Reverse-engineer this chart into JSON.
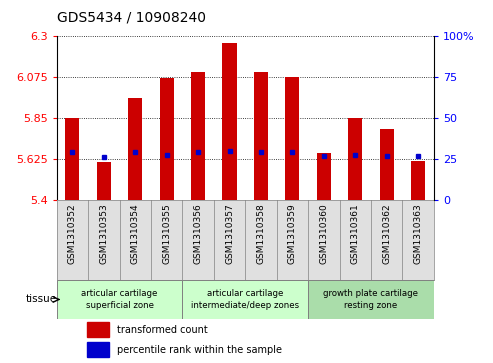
{
  "title": "GDS5434 / 10908240",
  "samples": [
    "GSM1310352",
    "GSM1310353",
    "GSM1310354",
    "GSM1310355",
    "GSM1310356",
    "GSM1310357",
    "GSM1310358",
    "GSM1310359",
    "GSM1310360",
    "GSM1310361",
    "GSM1310362",
    "GSM1310363"
  ],
  "bar_tops": [
    5.85,
    5.605,
    5.96,
    6.07,
    6.105,
    6.265,
    6.105,
    6.075,
    5.655,
    5.85,
    5.79,
    5.615
  ],
  "bar_bottoms": [
    5.4,
    5.4,
    5.4,
    5.4,
    5.4,
    5.4,
    5.4,
    5.4,
    5.4,
    5.4,
    5.4,
    5.4
  ],
  "blue_dot_values": [
    5.665,
    5.635,
    5.665,
    5.645,
    5.665,
    5.67,
    5.665,
    5.665,
    5.64,
    5.645,
    5.64,
    5.64
  ],
  "ylim": [
    5.4,
    6.3
  ],
  "yticks": [
    5.4,
    5.625,
    5.85,
    6.075,
    6.3
  ],
  "right_yticks": [
    0,
    25,
    50,
    75,
    100
  ],
  "bar_color": "#cc0000",
  "dot_color": "#0000cc",
  "groups": [
    {
      "label": "articular cartilage\nsuperficial zone",
      "indices": [
        0,
        1,
        2,
        3
      ],
      "color": "#ccffcc"
    },
    {
      "label": "articular cartilage\nintermediate/deep zones",
      "indices": [
        4,
        5,
        6,
        7
      ],
      "color": "#ccffcc"
    },
    {
      "label": "growth plate cartilage\nresting zone",
      "indices": [
        8,
        9,
        10,
        11
      ],
      "color": "#aaddaa"
    }
  ],
  "legend_bar_label": "transformed count",
  "legend_dot_label": "percentile rank within the sample",
  "title_fontsize": 10,
  "tick_label_fontsize": 6.5,
  "ylabel_left_color": "red",
  "ylabel_right_color": "blue"
}
